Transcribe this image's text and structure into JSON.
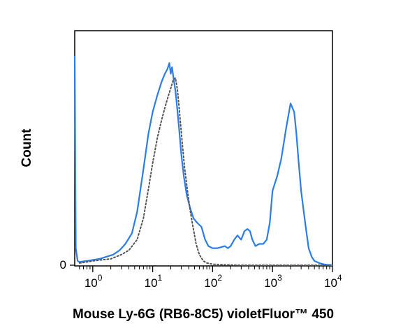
{
  "chart_data": {
    "type": "line",
    "title": "",
    "xlabel": "Mouse Ly-6G (RB6-8C5) violetFluor™ 450",
    "ylabel": "Count",
    "x_scale": "log",
    "xlim": [
      0.5,
      10000
    ],
    "ylim": [
      0,
      1.0
    ],
    "x_ticks": [
      {
        "base": "10",
        "exp": "0",
        "value": 1
      },
      {
        "base": "10",
        "exp": "1",
        "value": 10
      },
      {
        "base": "10",
        "exp": "2",
        "value": 100
      },
      {
        "base": "10",
        "exp": "3",
        "value": 1000
      },
      {
        "base": "10",
        "exp": "4",
        "value": 10000
      }
    ],
    "y_ticks": [
      {
        "label": "0",
        "value": 0
      }
    ],
    "grid": false,
    "legend": "none",
    "series": [
      {
        "color": "#2b7de9",
        "style": "solid",
        "x": [
          0.5,
          0.52,
          0.56,
          0.6,
          0.7,
          0.8,
          1.0,
          1.3,
          1.7,
          2.2,
          2.8,
          3.5,
          4.5,
          5.5,
          7,
          8.5,
          10,
          12,
          14,
          16,
          17.5,
          19,
          20,
          21,
          22.5,
          24,
          26,
          28,
          30,
          33,
          37,
          42,
          48,
          55,
          65,
          75,
          85,
          100,
          120,
          140,
          160,
          180,
          200,
          230,
          260,
          300,
          340,
          380,
          420,
          460,
          520,
          600,
          700,
          800,
          900,
          1000,
          1200,
          1400,
          1700,
          2000,
          2300,
          2500,
          2700,
          3000,
          3500,
          4000,
          4500,
          5000,
          6000,
          7000,
          8000,
          10000
        ],
        "y": [
          0.98,
          0.08,
          0.02,
          0.015,
          0.018,
          0.02,
          0.025,
          0.03,
          0.04,
          0.05,
          0.07,
          0.1,
          0.15,
          0.25,
          0.45,
          0.62,
          0.72,
          0.8,
          0.86,
          0.9,
          0.92,
          0.95,
          0.9,
          0.93,
          0.87,
          0.82,
          0.72,
          0.62,
          0.52,
          0.42,
          0.33,
          0.27,
          0.22,
          0.2,
          0.18,
          0.12,
          0.09,
          0.08,
          0.08,
          0.085,
          0.09,
          0.08,
          0.09,
          0.12,
          0.14,
          0.12,
          0.16,
          0.17,
          0.16,
          0.12,
          0.09,
          0.1,
          0.1,
          0.12,
          0.2,
          0.35,
          0.42,
          0.5,
          0.65,
          0.76,
          0.72,
          0.62,
          0.5,
          0.35,
          0.2,
          0.08,
          0.04,
          0.02,
          0.01,
          0.005,
          0.002,
          0.0
        ]
      },
      {
        "color": "#555555",
        "style": "dotted",
        "x": [
          0.6,
          0.8,
          1.0,
          1.4,
          2.0,
          3.0,
          4.0,
          5.5,
          7,
          8.5,
          10,
          12,
          14,
          16,
          18,
          20,
          22,
          24,
          26,
          28,
          31,
          34,
          38,
          42,
          47,
          53,
          60,
          70,
          80,
          100,
          150,
          300,
          1000,
          10000
        ],
        "y": [
          0.01,
          0.015,
          0.02,
          0.025,
          0.03,
          0.05,
          0.07,
          0.12,
          0.22,
          0.36,
          0.48,
          0.6,
          0.68,
          0.74,
          0.79,
          0.83,
          0.87,
          0.88,
          0.82,
          0.72,
          0.58,
          0.46,
          0.35,
          0.26,
          0.18,
          0.1,
          0.05,
          0.02,
          0.01,
          0.005,
          0.002,
          0.0,
          0.0,
          0.0
        ]
      }
    ]
  }
}
